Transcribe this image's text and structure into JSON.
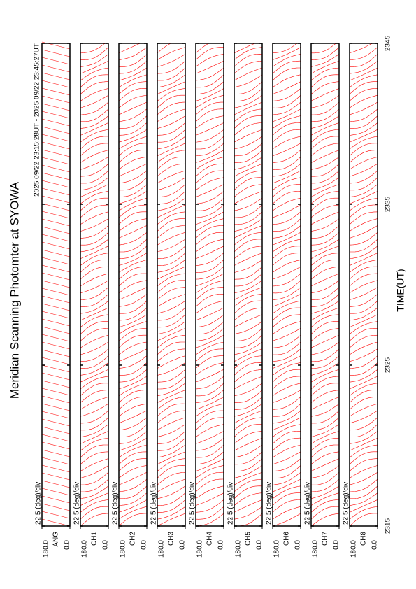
{
  "chart_data": {
    "type": "line",
    "title": "Meridian Scanning Photomter at SYOWA",
    "subtitle": "2025 09/22 23:15:28UT - 2025 09/22 23:45:27UT",
    "x_label": "TIME(UT)",
    "xlim": [
      2315,
      2345
    ],
    "xticks": [
      2315,
      2325,
      2335,
      2345
    ],
    "color": "#ff0000",
    "panels": [
      {
        "label": "ANG",
        "scale": "22.5 (deg)/div",
        "ylim": [
          0,
          180
        ],
        "yticks": [
          {
            "value": 0,
            "label": "0.0"
          },
          {
            "value": 180,
            "label": "180.0"
          }
        ]
      },
      {
        "label": "CH1",
        "scale": "22.5 (deg)/div",
        "ylim": [
          0,
          180
        ],
        "yticks": [
          {
            "value": 0,
            "label": "0.0"
          },
          {
            "value": 180,
            "label": "180.0"
          }
        ]
      },
      {
        "label": "CH2",
        "scale": "22.5 (deg)/div",
        "ylim": [
          0,
          180
        ],
        "yticks": [
          {
            "value": 0,
            "label": "0.0"
          },
          {
            "value": 180,
            "label": "180.0"
          }
        ]
      },
      {
        "label": "CH3",
        "scale": "22.5 (deg)/div",
        "ylim": [
          0,
          180
        ],
        "yticks": [
          {
            "value": 0,
            "label": "0.0"
          },
          {
            "value": 180,
            "label": "180.0"
          }
        ]
      },
      {
        "label": "CH4",
        "scale": "22.5 (deg)/div",
        "ylim": [
          0,
          180
        ],
        "yticks": [
          {
            "value": 0,
            "label": "0.0"
          },
          {
            "value": 180,
            "label": "180.0"
          }
        ]
      },
      {
        "label": "CH5",
        "scale": "22.5 (deg)/div",
        "ylim": [
          0,
          180
        ],
        "yticks": [
          {
            "value": 0,
            "label": "0.0"
          },
          {
            "value": 180,
            "label": "180.0"
          }
        ]
      },
      {
        "label": "CH6",
        "scale": "22.5 (deg)/div",
        "ylim": [
          0,
          180
        ],
        "yticks": [
          {
            "value": 0,
            "label": "0.0"
          },
          {
            "value": 180,
            "label": "180.0"
          }
        ]
      },
      {
        "label": "CH7",
        "scale": "22.5 (deg)/div",
        "ylim": [
          0,
          180
        ],
        "yticks": [
          {
            "value": 0,
            "label": "0.0"
          },
          {
            "value": 180,
            "label": "180.0"
          }
        ]
      },
      {
        "label": "CH8",
        "scale": "22.5 (deg)/div",
        "ylim": [
          0,
          180
        ],
        "yticks": [
          {
            "value": 0,
            "label": "0.0"
          },
          {
            "value": 180,
            "label": "180.0"
          }
        ]
      }
    ]
  }
}
